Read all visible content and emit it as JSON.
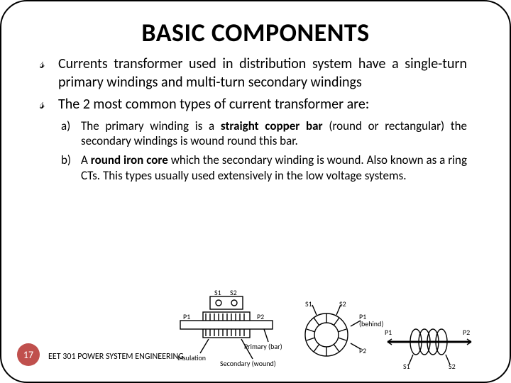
{
  "title": {
    "text": "BASIC COMPONENTS",
    "fontsize": 36,
    "color": "#000000"
  },
  "body_fontsize": 20,
  "sub_fontsize": 17,
  "bullets": [
    "Currents transformer used in distribution system have a single-turn primary windings and multi-turn secondary windings",
    "The 2 most common types of current transformer are:"
  ],
  "sub_items": [
    {
      "marker": "a)",
      "html": "The primary winding is a <b>straight copper bar</b> (round or rectangular) the secondary windings is wound round this bar."
    },
    {
      "marker": "b)",
      "html": "A <b>round iron core</b> which the secondary winding is wound. Also known as a ring CTs. This types usually used extensively in the low voltage systems."
    }
  ],
  "footer": {
    "text": "EET 301 POWER SYSTEM ENGINEERING",
    "fontsize": 12,
    "color": "#000000"
  },
  "page": {
    "number": "17",
    "bg": "#c0504d"
  },
  "figures": {
    "stroke": "#000000",
    "bar_ct": {
      "labels": {
        "S1": "S1",
        "S2": "S2",
        "P1": "P1",
        "P2": "P2",
        "insulation": "Insulation",
        "primary": "Primary (bar)",
        "secondary": "Secondary (wound)"
      }
    },
    "ring_ct": {
      "labels": {
        "S1": "S1",
        "S2": "S2",
        "P1": "P1",
        "P2": "P2",
        "behind": "(behind)"
      }
    },
    "coil_ct": {
      "labels": {
        "S1": "S1",
        "S2": "S2",
        "P1": "P1",
        "P2": "P2"
      }
    }
  }
}
